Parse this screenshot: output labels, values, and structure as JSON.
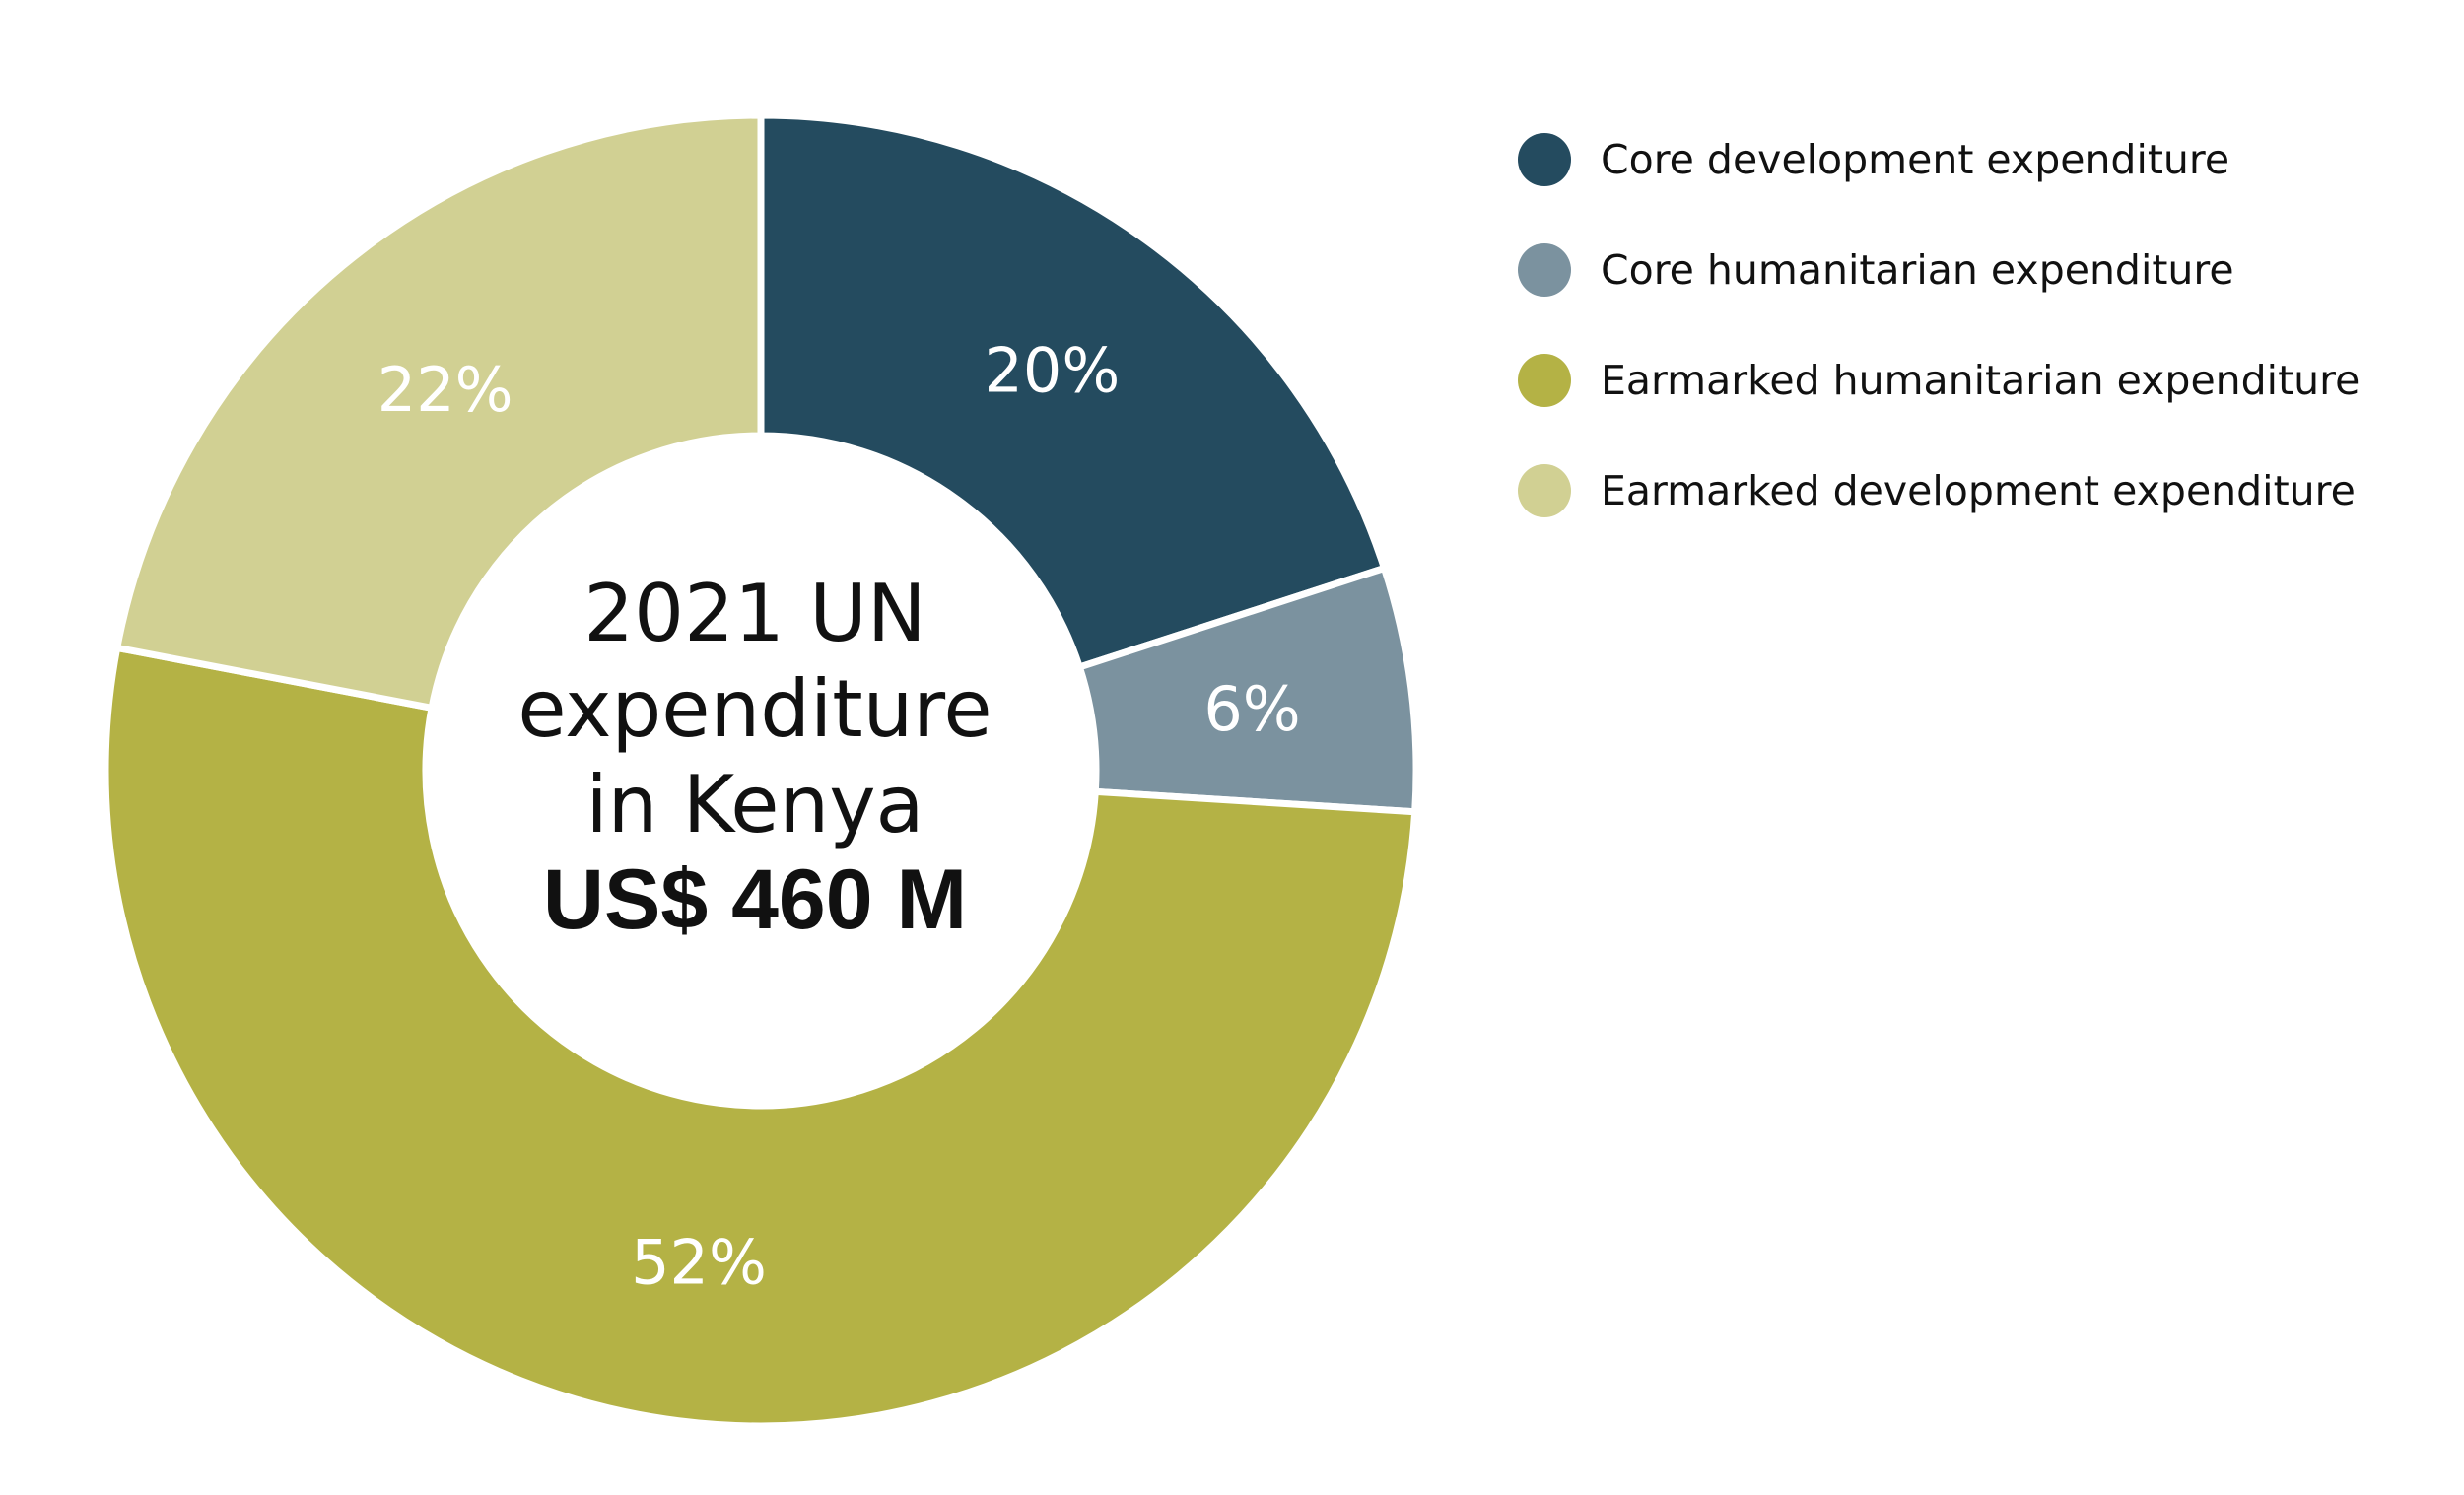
{
  "chart_data": {
    "type": "pie",
    "donut": true,
    "center_title_lines": [
      "2021 UN",
      "expenditure",
      "in Kenya"
    ],
    "center_total": "US$ 460 M",
    "slices": [
      {
        "name": "Core development expenditure",
        "value": 20,
        "label": "20%",
        "color": "#244b5f"
      },
      {
        "name": "Core humanitarian expenditure",
        "value": 6,
        "label": "6%",
        "color": "#7b929f"
      },
      {
        "name": "Earmarked humanitarian expenditure",
        "value": 52,
        "label": "52%",
        "color": "#b4b245"
      },
      {
        "name": "Earmarked development expenditure",
        "value": 22,
        "label": "22%",
        "color": "#d1d093"
      }
    ],
    "legend_position": "top-right"
  }
}
